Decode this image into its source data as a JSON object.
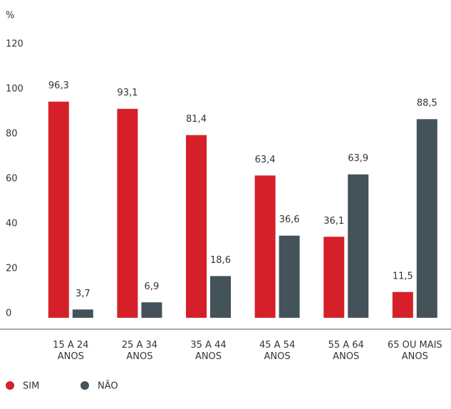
{
  "chart_data": {
    "type": "bar",
    "ylabel": "%",
    "categories": [
      "15 A 24 ANOS",
      "25 A 34 ANOS",
      "35 A 44 ANOS",
      "45 A 54 ANOS",
      "55 A 64 ANOS",
      "65 OU MAIS ANOS"
    ],
    "series": [
      {
        "name": "SIM",
        "color": "#d52029",
        "values": [
          96.3,
          93.1,
          81.4,
          63.4,
          36.1,
          11.5
        ],
        "value_labels": [
          "96,3",
          "93,1",
          "81,4",
          "63,4",
          "36,1",
          "11,5"
        ]
      },
      {
        "name": "NÃO",
        "color": "#44535a",
        "values": [
          3.7,
          6.9,
          18.6,
          36.6,
          63.9,
          88.5
        ],
        "value_labels": [
          "3,7",
          "6,9",
          "18,6",
          "36,6",
          "63,9",
          "88,5"
        ]
      }
    ],
    "ylim": [
      0,
      120
    ],
    "yticks": [
      0,
      20,
      40,
      60,
      80,
      100,
      120
    ],
    "grid": false,
    "legend": "bottom-left"
  }
}
